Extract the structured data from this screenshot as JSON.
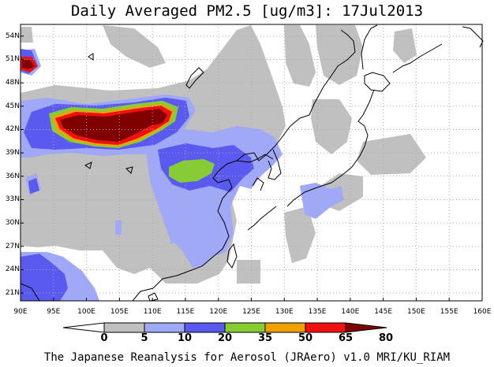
{
  "title": "Daily Averaged PM2.5 [ug/m3]: 17Jul2013",
  "footer": "The Japanese Reanalysis for Aerosol (JRAero) v1.0 MRI/KU_RIAM",
  "axes": {
    "lat_labels": [
      "54N",
      "51N",
      "48N",
      "45N",
      "42N",
      "39N",
      "36N",
      "33N",
      "30N",
      "27N",
      "24N",
      "21N"
    ],
    "lon_labels": [
      "90E",
      "95E",
      "100E",
      "105E",
      "110E",
      "115E",
      "120E",
      "125E",
      "130E",
      "135E",
      "140E",
      "145E",
      "150E",
      "155E",
      "160E"
    ],
    "lat_range": [
      20,
      55.5
    ],
    "lon_range": [
      90,
      160
    ]
  },
  "colorbar": {
    "ticks": [
      "0",
      "5",
      "10",
      "20",
      "35",
      "50",
      "65",
      "80"
    ],
    "colors": [
      "#ffffff",
      "#c0c0c0",
      "#a0a8f8",
      "#5a5af0",
      "#88cc33",
      "#f0a000",
      "#f01010",
      "#800000"
    ]
  },
  "colors": {
    "c5": "#c0c0c0",
    "c10": "#a0a8f8",
    "c20": "#5a5af0",
    "c35": "#88cc33",
    "c50": "#f0a000",
    "c65": "#f01010",
    "c80": "#800000",
    "grid": "#aaaaaa",
    "coast": "#000000"
  }
}
